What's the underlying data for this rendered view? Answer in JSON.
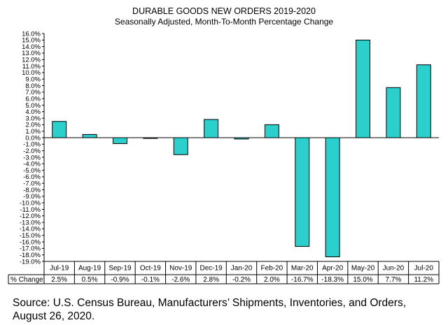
{
  "chart_data": {
    "type": "bar",
    "title": "DURABLE GOODS NEW ORDERS 2019-2020",
    "subtitle": "Seasonally Adjusted,  Month-To-Month Percentage Change",
    "xlabel": "",
    "ylabel": "",
    "ylim": [
      -19,
      16
    ],
    "ytick_step": 1,
    "grid": false,
    "bar_color": "#2BCFCC",
    "table_row_label": "% Change",
    "categories": [
      "Jul-19",
      "Aug-19",
      "Sep-19",
      "Oct-19",
      "Nov-19",
      "Dec-19",
      "Jan-20",
      "Feb-20",
      "Mar-20",
      "Apr-20",
      "May-20",
      "Jun-20",
      "Jul-20"
    ],
    "values": [
      2.5,
      0.5,
      -0.9,
      -0.1,
      -2.6,
      2.8,
      -0.2,
      2.0,
      -16.7,
      -18.3,
      15.0,
      7.7,
      11.2
    ],
    "value_labels": [
      "2.5%",
      "0.5%",
      "-0.9%",
      "-0.1%",
      "-2.6%",
      "2.8%",
      "-0.2%",
      "2.0%",
      "-16.7%",
      "-18.3%",
      "15.0%",
      "7.7%",
      "11.2%"
    ]
  },
  "source": "Source: U.S. Census Bureau, Manufacturers’ Shipments, Inventories, and Orders, August 26, 2020."
}
